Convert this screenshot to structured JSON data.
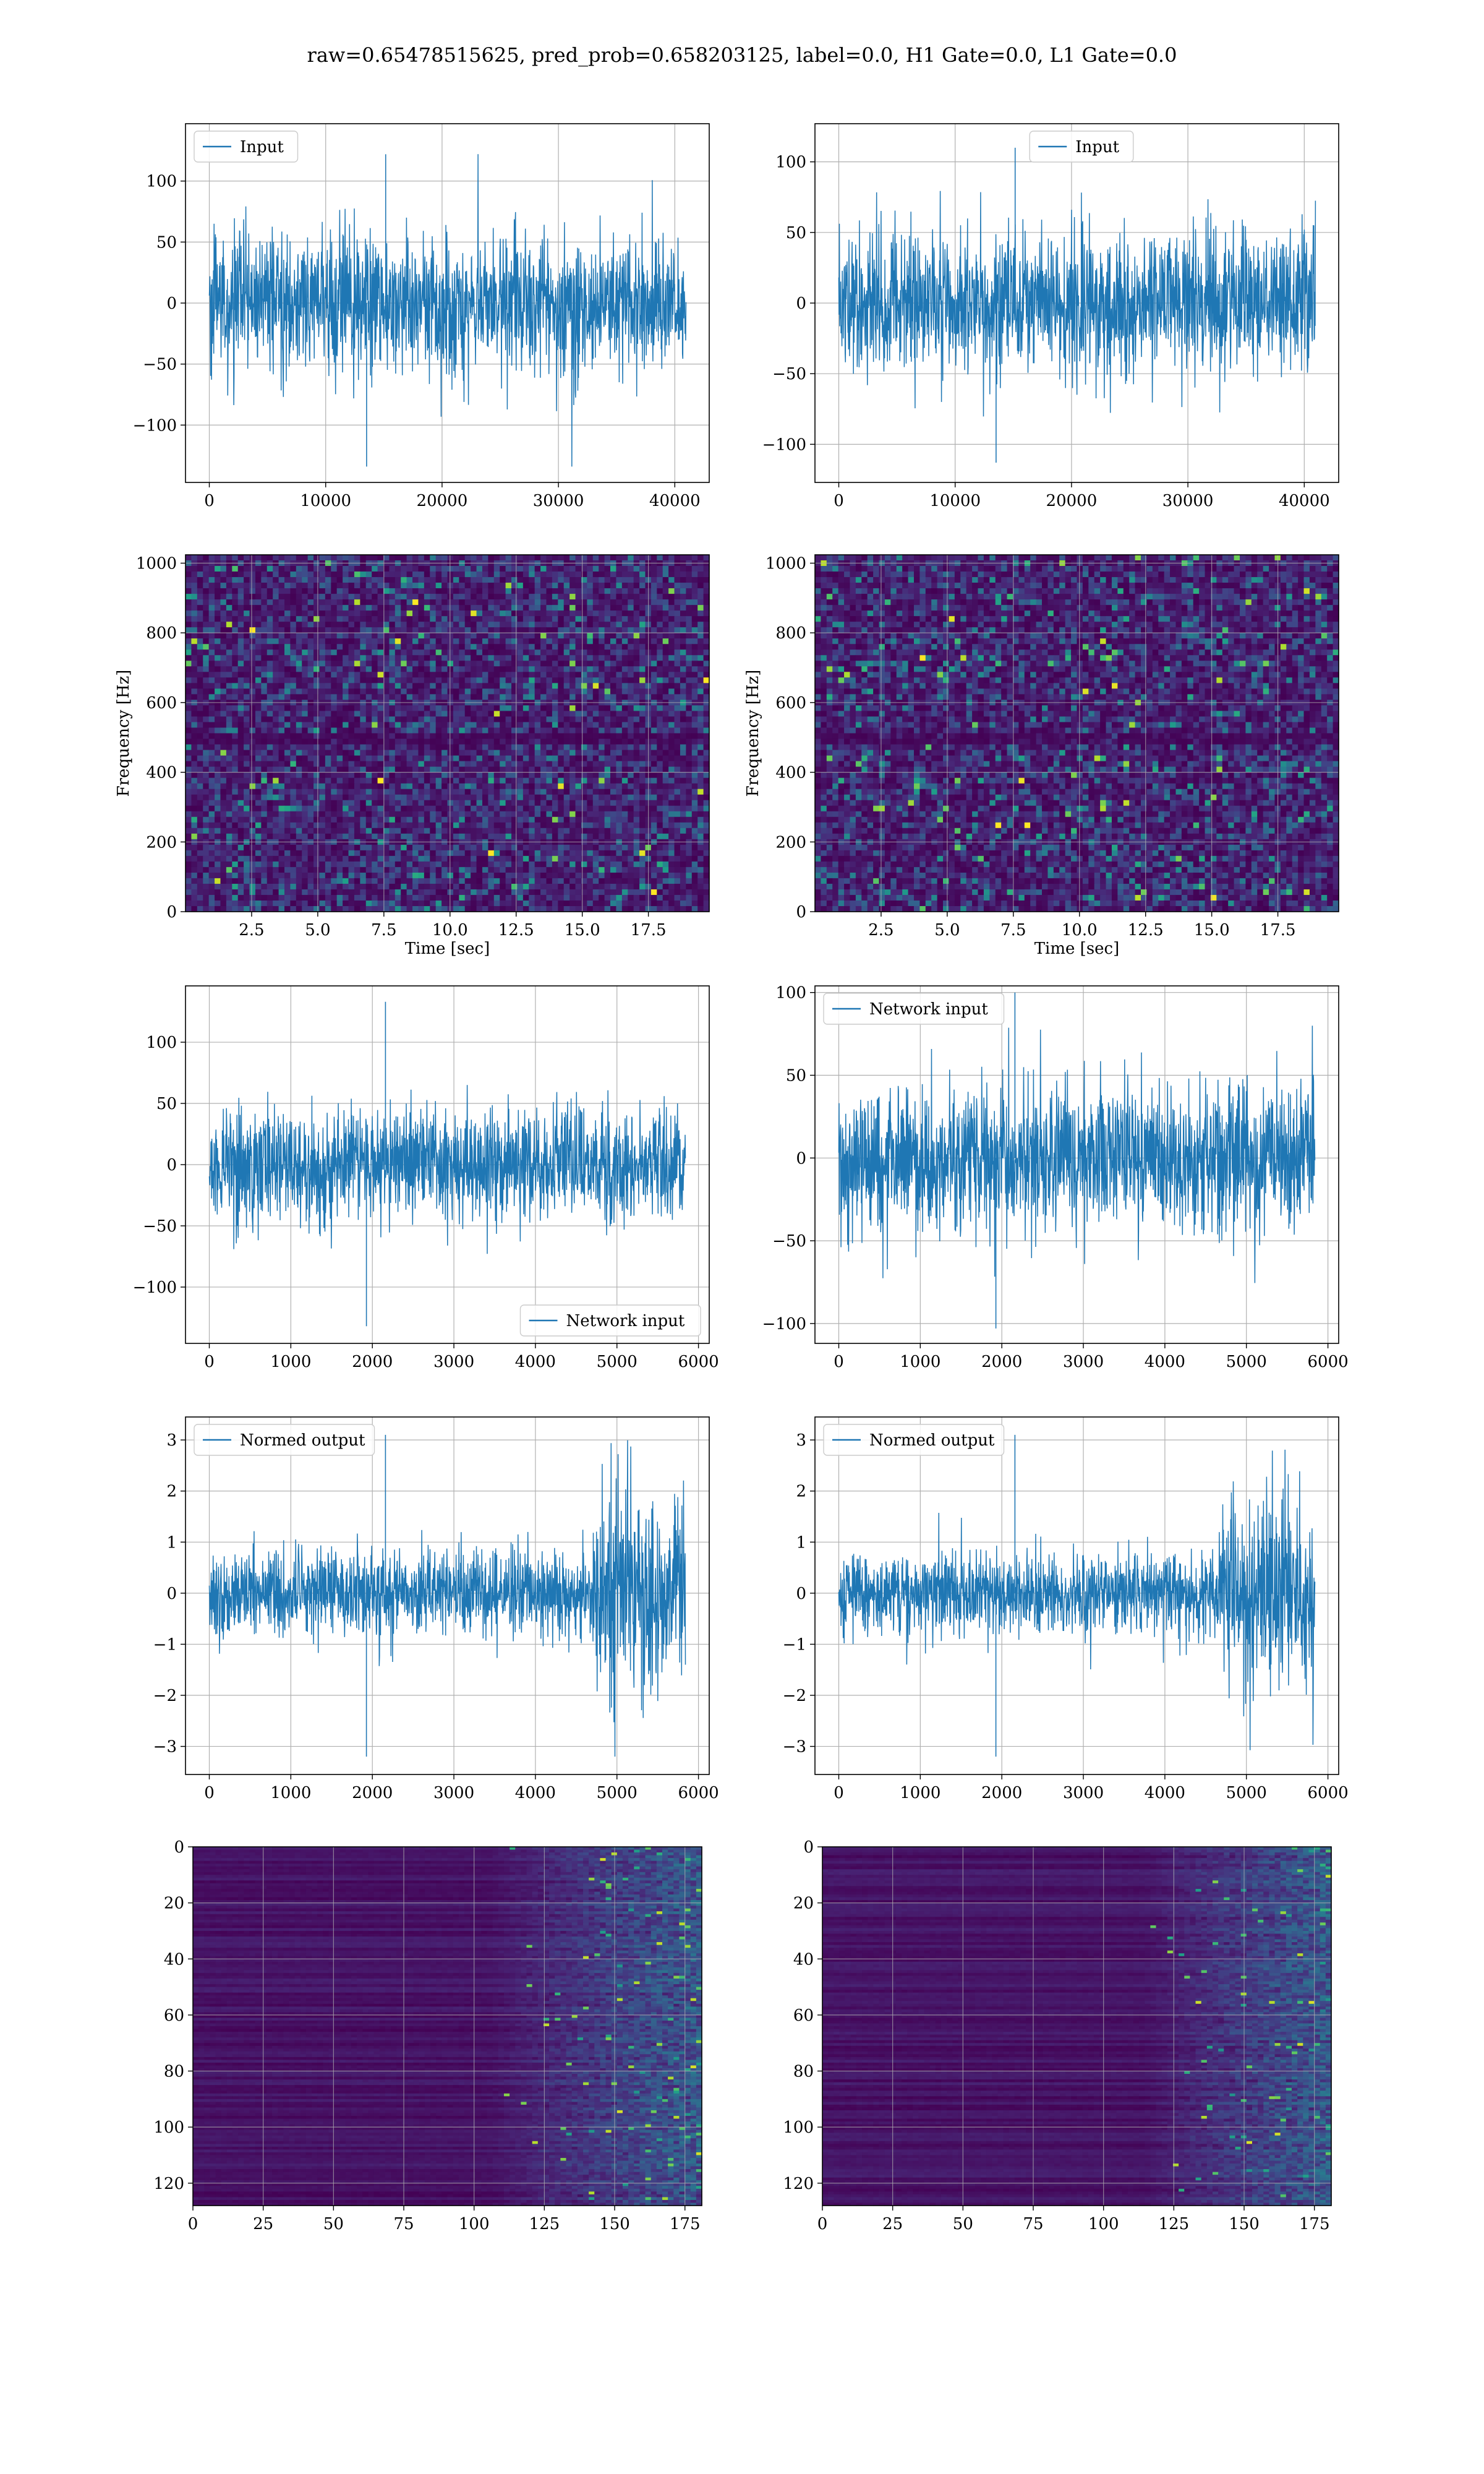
{
  "figure": {
    "suptitle": "raw=0.65478515625, pred_prob=0.658203125, label=0.0, H1 Gate=0.0, L1 Gate=0.0"
  },
  "colors": {
    "series": "#1f77b4",
    "grid": "#b0b0b0",
    "viridis_low": "#440154",
    "viridis_high": "#fde725"
  },
  "chart_data": [
    {
      "id": "input_h1",
      "type": "line",
      "row": 0,
      "col": 0,
      "legend": "Input",
      "legend_loc": "upper-left",
      "xlim": [
        -2046,
        42958
      ],
      "ylim": [
        -147,
        147
      ],
      "xticks": [
        0,
        10000,
        20000,
        30000,
        40000
      ],
      "yticks": [
        -100,
        -50,
        0,
        50,
        100
      ],
      "series": [
        {
          "name": "Input",
          "x_start": 0,
          "x_end": 40960,
          "noise_std": 28,
          "max": 122,
          "min": -134
        }
      ],
      "grid": true
    },
    {
      "id": "input_l1",
      "type": "line",
      "row": 0,
      "col": 1,
      "legend": "Input",
      "legend_loc": "upper-right",
      "xlim": [
        -2046,
        42958
      ],
      "ylim": [
        -127,
        127
      ],
      "xticks": [
        0,
        10000,
        20000,
        30000,
        40000
      ],
      "yticks": [
        -100,
        -50,
        0,
        50,
        100
      ],
      "series": [
        {
          "name": "Input",
          "x_start": 0,
          "x_end": 40960,
          "noise_std": 24,
          "max": 110,
          "min": -113
        }
      ],
      "grid": true
    },
    {
      "id": "spec_h1",
      "type": "heatmap",
      "row": 1,
      "col": 0,
      "xlabel": "Time [sec]",
      "ylabel": "Frequency [Hz]",
      "xlim": [
        0,
        19.8
      ],
      "ylim": [
        0,
        1024
      ],
      "xticks": [
        "2.5",
        "5.0",
        "7.5",
        "10.0",
        "12.5",
        "15.0",
        "17.5"
      ],
      "yticks": [
        0,
        200,
        400,
        600,
        800,
        1000
      ],
      "dark_band_hz": [
        492,
        512
      ],
      "grid": true
    },
    {
      "id": "spec_l1",
      "type": "heatmap",
      "row": 1,
      "col": 1,
      "xlabel": "Time [sec]",
      "ylabel": "Frequency [Hz]",
      "xlim": [
        0,
        19.8
      ],
      "ylim": [
        0,
        1024
      ],
      "xticks": [
        "2.5",
        "5.0",
        "7.5",
        "10.0",
        "12.5",
        "15.0",
        "17.5"
      ],
      "yticks": [
        0,
        200,
        400,
        600,
        800,
        1000
      ],
      "dark_band_hz": [
        492,
        512
      ],
      "grid": true
    },
    {
      "id": "netin_h1",
      "type": "line",
      "row": 2,
      "col": 0,
      "legend": "Network input",
      "legend_loc": "lower-right",
      "xlim": [
        -292,
        6132
      ],
      "ylim": [
        -146,
        146
      ],
      "xticks": [
        0,
        1000,
        2000,
        3000,
        4000,
        5000,
        6000
      ],
      "yticks": [
        -100,
        -50,
        0,
        50,
        100
      ],
      "series": [
        {
          "name": "Network input",
          "x_start": 0,
          "x_end": 5840,
          "noise_std": 22,
          "max": 133,
          "min": -132
        }
      ],
      "grid": true
    },
    {
      "id": "netin_l1",
      "type": "line",
      "row": 2,
      "col": 1,
      "legend": "Network input",
      "legend_loc": "upper-left",
      "xlim": [
        -292,
        6132
      ],
      "ylim": [
        -112,
        104
      ],
      "xticks": [
        0,
        1000,
        2000,
        3000,
        4000,
        5000,
        6000
      ],
      "yticks": [
        -100,
        -50,
        0,
        50,
        100
      ],
      "series": [
        {
          "name": "Network input",
          "x_start": 0,
          "x_end": 5840,
          "noise_std": 22,
          "max": 100,
          "min": -103
        }
      ],
      "grid": true
    },
    {
      "id": "normed_h1",
      "type": "line",
      "row": 3,
      "col": 0,
      "legend": "Normed output",
      "legend_loc": "upper-left",
      "xlim": [
        -292,
        6132
      ],
      "ylim": [
        -3.55,
        3.45
      ],
      "xticks": [
        0,
        1000,
        2000,
        3000,
        4000,
        5000,
        6000
      ],
      "yticks": [
        -3,
        -2,
        -1,
        0,
        1,
        2,
        3
      ],
      "series": [
        {
          "name": "Normed output",
          "x_start": 0,
          "x_end": 5840,
          "noise_std": 0.42,
          "burst_start": 4700,
          "burst_std": 0.95,
          "max": 3.1,
          "min": -3.2
        }
      ],
      "grid": true
    },
    {
      "id": "normed_l1",
      "type": "line",
      "row": 3,
      "col": 1,
      "legend": "Normed output",
      "legend_loc": "upper-left",
      "xlim": [
        -292,
        6132
      ],
      "ylim": [
        -3.55,
        3.45
      ],
      "xticks": [
        0,
        1000,
        2000,
        3000,
        4000,
        5000,
        6000
      ],
      "yticks": [
        -3,
        -2,
        -1,
        0,
        1,
        2,
        3
      ],
      "series": [
        {
          "name": "Normed output",
          "x_start": 0,
          "x_end": 5840,
          "noise_std": 0.4,
          "burst_start": 4700,
          "burst_std": 0.95,
          "max": 3.1,
          "min": -3.2
        }
      ],
      "grid": true
    },
    {
      "id": "feat_h1",
      "type": "heatmap",
      "row": 4,
      "col": 0,
      "xlim": [
        0,
        181
      ],
      "ylim": [
        128,
        0
      ],
      "xticks": [
        0,
        25,
        50,
        75,
        100,
        125,
        150,
        175
      ],
      "yticks": [
        0,
        20,
        40,
        60,
        80,
        100,
        120
      ],
      "active_from_col": 105,
      "grid": true
    },
    {
      "id": "feat_l1",
      "type": "heatmap",
      "row": 4,
      "col": 1,
      "xlim": [
        0,
        181
      ],
      "ylim": [
        128,
        0
      ],
      "xticks": [
        0,
        25,
        50,
        75,
        100,
        125,
        150,
        175
      ],
      "yticks": [
        0,
        20,
        40,
        60,
        80,
        100,
        120
      ],
      "active_from_col": 115,
      "grid": true
    }
  ]
}
